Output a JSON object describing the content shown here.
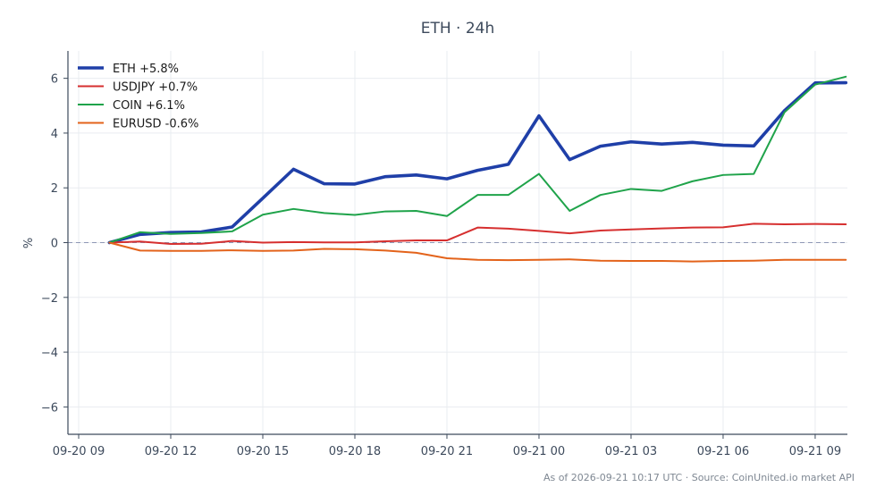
{
  "chart_data": {
    "type": "line",
    "title": "ETH · 24h",
    "xlabel": "",
    "ylabel": "%",
    "xlim": [
      -0.35,
      25.05
    ],
    "ylim": [
      -7,
      7
    ],
    "yticks": [
      -6,
      -4,
      -2,
      0,
      2,
      4,
      6
    ],
    "yticklabels": [
      "−6",
      "−4",
      "−2",
      "0",
      "2",
      "4",
      "6"
    ],
    "xticks": [
      0,
      3,
      6,
      9,
      12,
      15,
      18,
      21,
      24
    ],
    "xticklabels": [
      "09-20 09",
      "09-20 12",
      "09-20 15",
      "09-20 18",
      "09-20 21",
      "09-21 00",
      "09-21 03",
      "09-21 06",
      "09-21 09"
    ],
    "zero_line": true,
    "grid": true,
    "legend_position": "top-left",
    "x": [
      1,
      2,
      3,
      4,
      5,
      6,
      7,
      8,
      9,
      10,
      11,
      12,
      13,
      14,
      15,
      16,
      17,
      18,
      19,
      20,
      21,
      22,
      23,
      24,
      25
    ],
    "series": [
      {
        "name": "ETH +5.8%",
        "color": "#1f3fa8",
        "width": 3.6,
        "values": [
          0.0,
          0.3,
          0.37,
          0.39,
          0.57,
          1.62,
          2.68,
          2.15,
          2.14,
          2.41,
          2.47,
          2.33,
          2.64,
          2.86,
          4.63,
          3.03,
          3.52,
          3.68,
          3.6,
          3.66,
          3.56,
          3.53,
          4.82,
          5.83,
          5.84
        ]
      },
      {
        "name": "USDJPY +0.7%",
        "color": "#d62f2f",
        "width": 2,
        "values": [
          0.0,
          0.04,
          -0.05,
          -0.04,
          0.06,
          0.0,
          0.02,
          0.01,
          0.01,
          0.05,
          0.08,
          0.08,
          0.55,
          0.51,
          0.43,
          0.34,
          0.44,
          0.48,
          0.52,
          0.55,
          0.56,
          0.69,
          0.67,
          0.68,
          0.67
        ]
      },
      {
        "name": "COIN +6.1%",
        "color": "#1fa34a",
        "width": 2,
        "values": [
          0.0,
          0.38,
          0.32,
          0.35,
          0.41,
          1.02,
          1.23,
          1.08,
          1.01,
          1.14,
          1.16,
          0.97,
          1.74,
          1.74,
          2.51,
          1.16,
          1.74,
          1.96,
          1.89,
          2.24,
          2.47,
          2.51,
          4.76,
          5.77,
          6.06
        ]
      },
      {
        "name": "EURUSD -0.6%",
        "color": "#e3631b",
        "width": 2,
        "values": [
          0.0,
          -0.29,
          -0.3,
          -0.3,
          -0.28,
          -0.3,
          -0.29,
          -0.23,
          -0.24,
          -0.29,
          -0.37,
          -0.57,
          -0.63,
          -0.64,
          -0.63,
          -0.61,
          -0.66,
          -0.67,
          -0.67,
          -0.69,
          -0.67,
          -0.66,
          -0.63,
          -0.63,
          -0.63
        ]
      }
    ]
  },
  "footer": "As of 2026-09-21 10:17 UTC · Source: CoinUnited.io market API"
}
